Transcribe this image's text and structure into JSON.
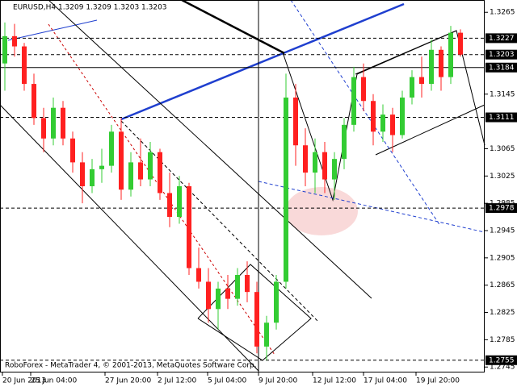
{
  "chart_data": {
    "type": "candlestick",
    "title": "EURUSD,H4  1.3209 1.3209 1.3203 1.3203",
    "footer": "RoboForex - MetaTrader 4, © 2001-2013, MetaQuotes Software Corp.",
    "x_labels": [
      "20 Jun 2013",
      "25 Jun 04:00",
      "27 Jun 20:00",
      "2 Jul 12:00",
      "5 Jul 04:00",
      "9 Jul 20:00",
      "12 Jul 12:00",
      "17 Jul 04:00",
      "19 Jul 20:00"
    ],
    "ylim": [
      1.2737,
      1.3283
    ],
    "yticks": [
      1.3265,
      1.3145,
      1.3065,
      1.3025,
      1.2985,
      1.2945,
      1.2905,
      1.2865,
      1.2825,
      1.2785,
      1.2745
    ],
    "levels": [
      1.3227,
      1.3203,
      1.3184,
      1.3111,
      1.2978,
      1.2755
    ],
    "up_color": "#33cc33",
    "down_color": "#ff2020",
    "candles": [
      [
        1.319,
        1.325,
        1.315,
        1.323
      ],
      [
        1.323,
        1.3248,
        1.32,
        1.3215
      ],
      [
        1.3215,
        1.322,
        1.315,
        1.316
      ],
      [
        1.316,
        1.3175,
        1.31,
        1.311
      ],
      [
        1.311,
        1.3125,
        1.306,
        1.308
      ],
      [
        1.308,
        1.314,
        1.307,
        1.3125
      ],
      [
        1.3125,
        1.3135,
        1.307,
        1.308
      ],
      [
        1.308,
        1.309,
        1.303,
        1.3045
      ],
      [
        1.3045,
        1.306,
        1.2985,
        1.301
      ],
      [
        1.301,
        1.305,
        1.3,
        1.3035
      ],
      [
        1.3035,
        1.3065,
        1.3015,
        1.304
      ],
      [
        1.304,
        1.31,
        1.303,
        1.309
      ],
      [
        1.309,
        1.311,
        1.299,
        1.3005
      ],
      [
        1.3005,
        1.306,
        1.2995,
        1.3045
      ],
      [
        1.3045,
        1.308,
        1.301,
        1.302
      ],
      [
        1.302,
        1.3075,
        1.301,
        1.306
      ],
      [
        1.306,
        1.3065,
        1.299,
        1.3
      ],
      [
        1.3,
        1.303,
        1.295,
        1.2965
      ],
      [
        1.2965,
        1.3025,
        1.2955,
        1.301
      ],
      [
        1.301,
        1.3015,
        1.288,
        1.289
      ],
      [
        1.289,
        1.292,
        1.286,
        1.287
      ],
      [
        1.287,
        1.289,
        1.281,
        1.283
      ],
      [
        1.283,
        1.287,
        1.28,
        1.286
      ],
      [
        1.286,
        1.288,
        1.283,
        1.2845
      ],
      [
        1.2845,
        1.289,
        1.2835,
        1.288
      ],
      [
        1.288,
        1.29,
        1.284,
        1.2855
      ],
      [
        1.2855,
        1.287,
        1.2765,
        1.2775
      ],
      [
        1.2775,
        1.282,
        1.2755,
        1.281
      ],
      [
        1.281,
        1.288,
        1.28,
        1.287
      ],
      [
        1.287,
        1.3175,
        1.286,
        1.314
      ],
      [
        1.314,
        1.316,
        1.304,
        1.307
      ],
      [
        1.307,
        1.3095,
        1.301,
        1.303
      ],
      [
        1.303,
        1.308,
        1.3,
        1.306
      ],
      [
        1.306,
        1.3075,
        1.3,
        1.302
      ],
      [
        1.302,
        1.306,
        1.299,
        1.305
      ],
      [
        1.305,
        1.311,
        1.3035,
        1.31
      ],
      [
        1.31,
        1.3185,
        1.309,
        1.317
      ],
      [
        1.317,
        1.319,
        1.312,
        1.3135
      ],
      [
        1.3135,
        1.3145,
        1.307,
        1.309
      ],
      [
        1.309,
        1.313,
        1.3075,
        1.3115
      ],
      [
        1.3115,
        1.3125,
        1.306,
        1.3085
      ],
      [
        1.3085,
        1.315,
        1.308,
        1.314
      ],
      [
        1.314,
        1.318,
        1.313,
        1.317
      ],
      [
        1.317,
        1.32,
        1.314,
        1.316
      ],
      [
        1.316,
        1.3225,
        1.315,
        1.321
      ],
      [
        1.321,
        1.3215,
        1.315,
        1.317
      ],
      [
        1.317,
        1.3245,
        1.316,
        1.3235
      ],
      [
        1.3235,
        1.324,
        1.32,
        1.3203
      ]
    ]
  }
}
